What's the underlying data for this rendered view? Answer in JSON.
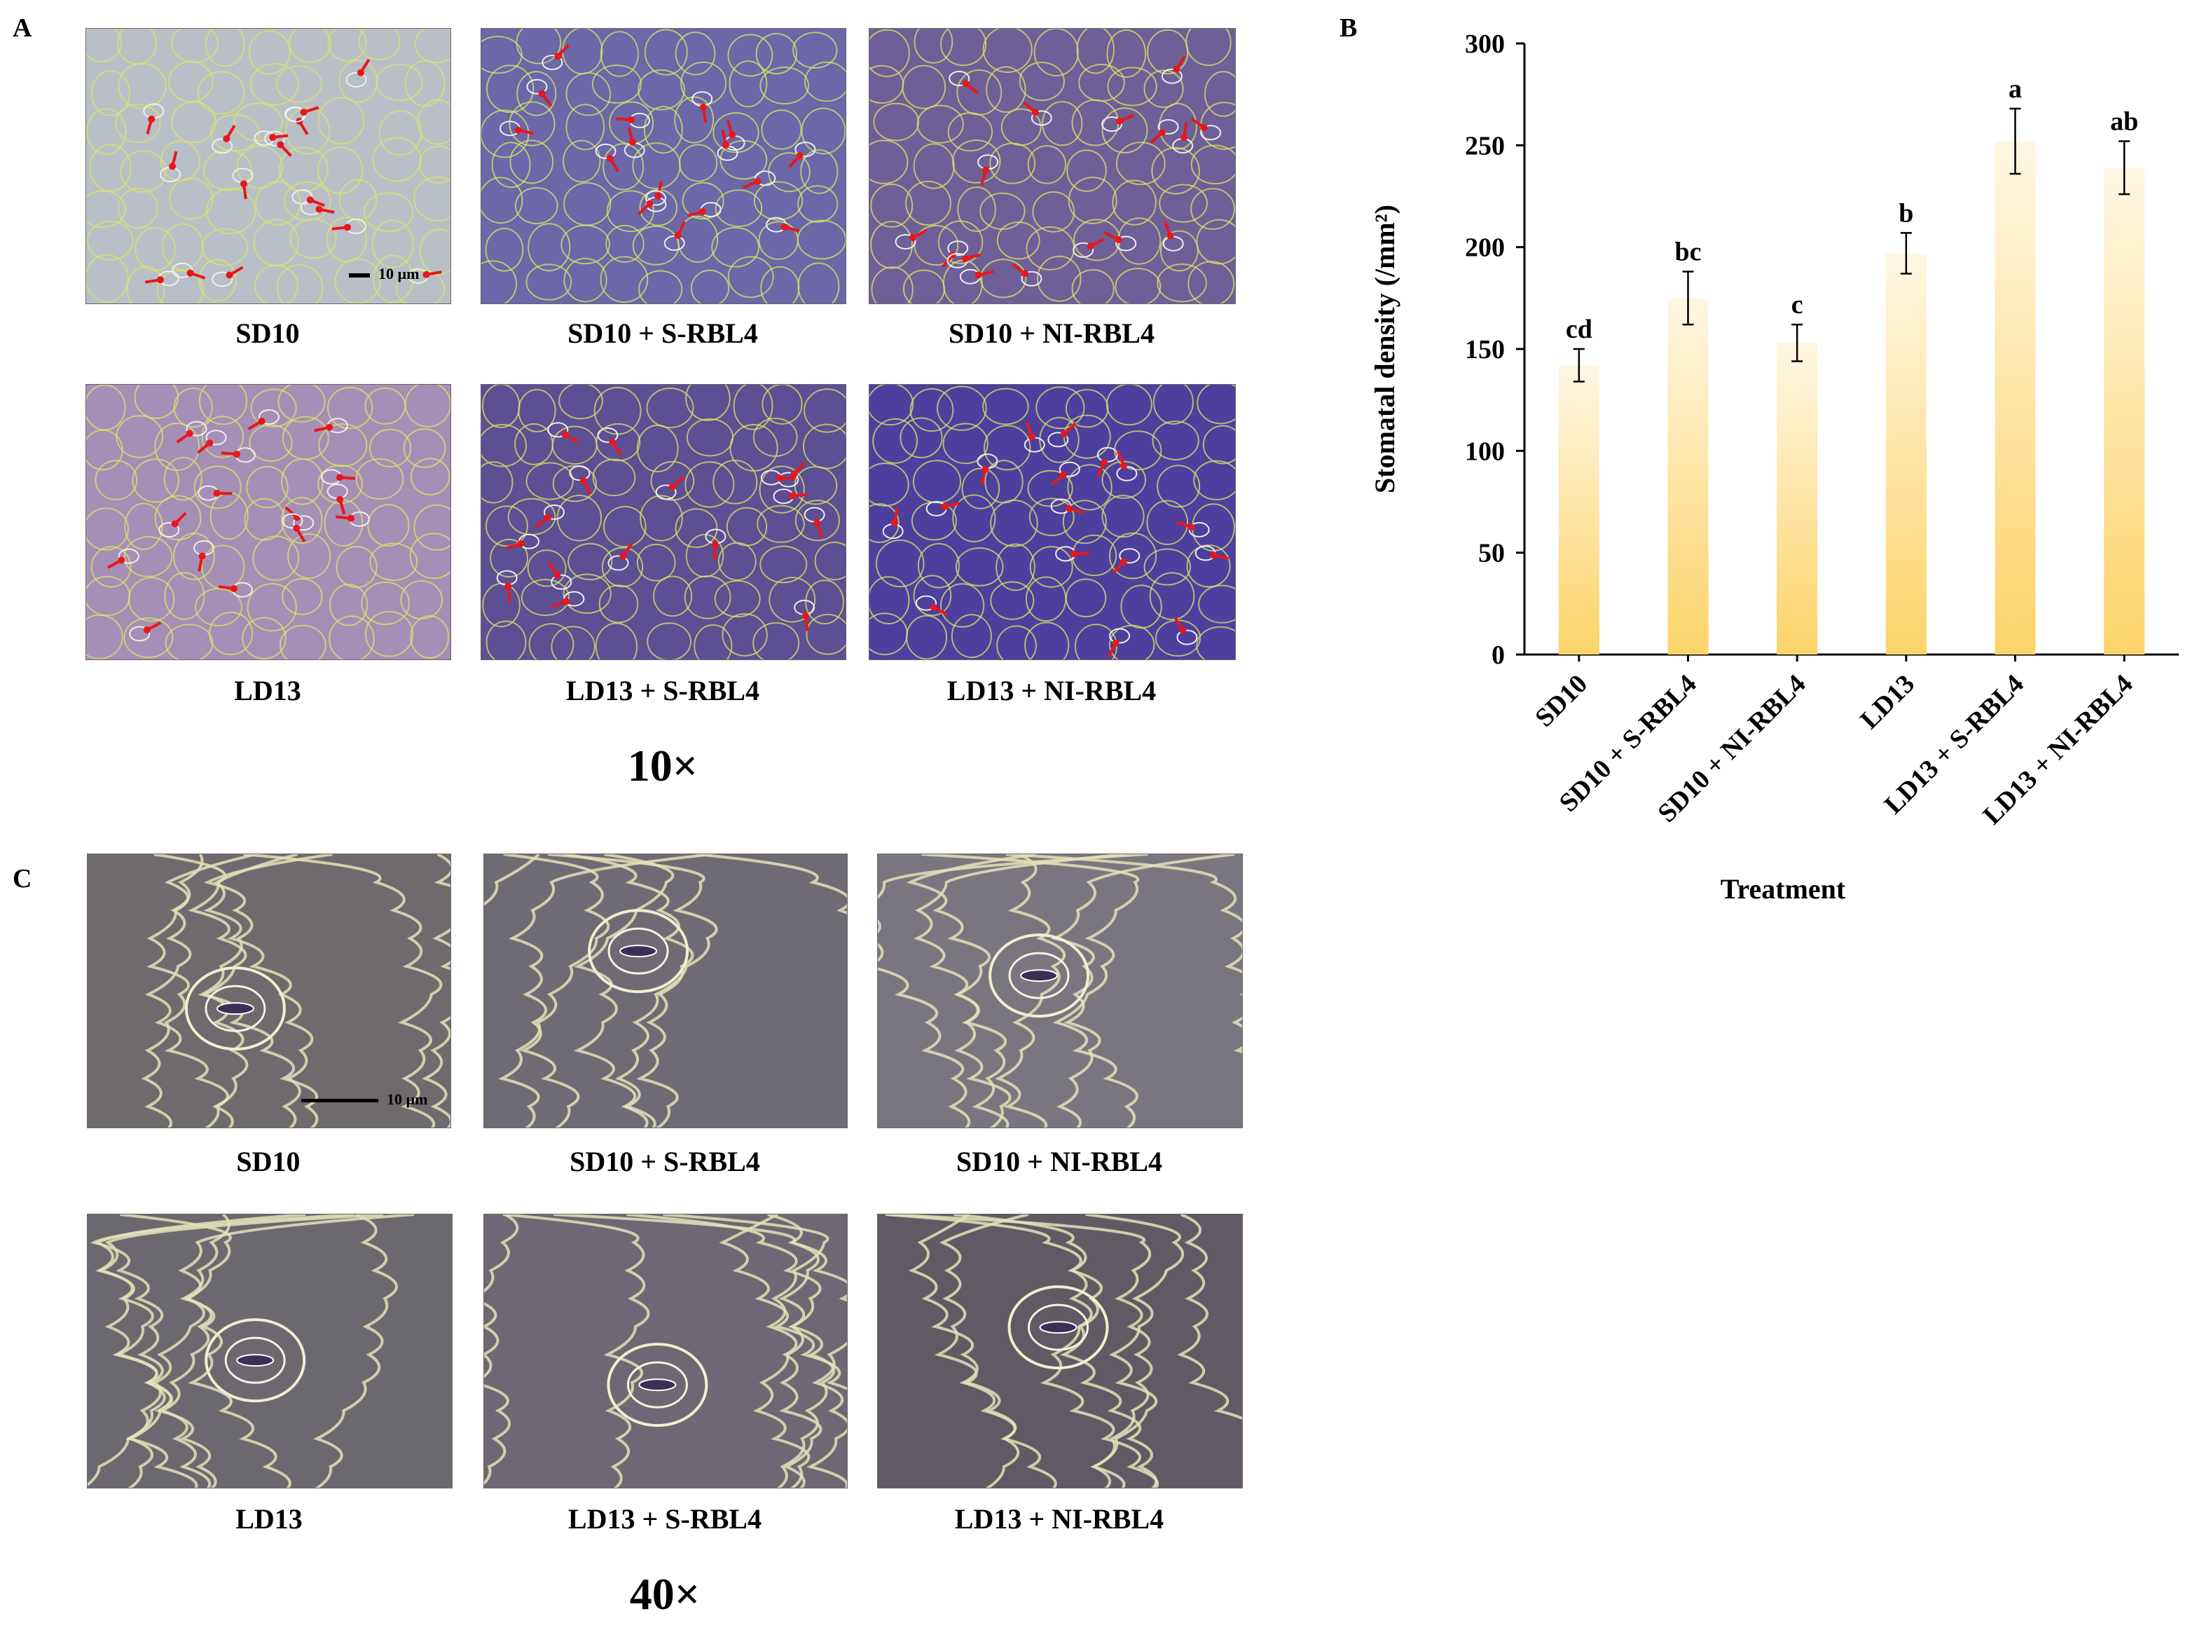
{
  "panels": {
    "A": "A",
    "B": "B",
    "C": "C"
  },
  "panel_a": {
    "magnification": "10×",
    "scale_bar": "10 µm",
    "images": [
      {
        "caption": "SD10",
        "tint": "#b9bfc7"
      },
      {
        "caption": "SD10 + S-RBL4",
        "tint": "#6b67a8"
      },
      {
        "caption": "SD10 + NI-RBL4",
        "tint": "#6f5f98"
      },
      {
        "caption": "LD13",
        "tint": "#a68fb6"
      },
      {
        "caption": "LD13 + S-RBL4",
        "tint": "#5c4f93"
      },
      {
        "caption": "LD13 + NI-RBL4",
        "tint": "#4d3f9e"
      }
    ]
  },
  "panel_c": {
    "magnification": "40×",
    "scale_bar": "10 µm",
    "images": [
      {
        "caption": "SD10",
        "tint": "#6e6a6e"
      },
      {
        "caption": "SD10 + S-RBL4",
        "tint": "#6f6b74"
      },
      {
        "caption": "SD10 + NI-RBL4",
        "tint": "#7a7680"
      },
      {
        "caption": "LD13",
        "tint": "#6c6870"
      },
      {
        "caption": "LD13 + S-RBL4",
        "tint": "#6d6873"
      },
      {
        "caption": "LD13 + NI-RBL4",
        "tint": "#5f5a63"
      }
    ]
  },
  "colors": {
    "bar_top": "#fff7e4",
    "bar_bottom": "#fdd46a",
    "arrow": "#e8171b",
    "cell_wall": "#d9e36a"
  },
  "chart_data": {
    "type": "bar",
    "categories": [
      "SD10",
      "SD10 + S-RBL4",
      "SD10 + NI-RBL4",
      "LD13",
      "LD13 + S-RBL4",
      "LD13 + NI-RBL4"
    ],
    "values": [
      142,
      175,
      153,
      197,
      252,
      239
    ],
    "errors": [
      8,
      13,
      9,
      10,
      16,
      13
    ],
    "significance": [
      "cd",
      "bc",
      "c",
      "b",
      "a",
      "ab"
    ],
    "ylabel": "Stomatal density (/mm²)",
    "xlabel": "Treatment",
    "ylim": [
      0,
      300
    ],
    "yticks": [
      0,
      50,
      100,
      150,
      200,
      250,
      300
    ],
    "grid": false
  }
}
